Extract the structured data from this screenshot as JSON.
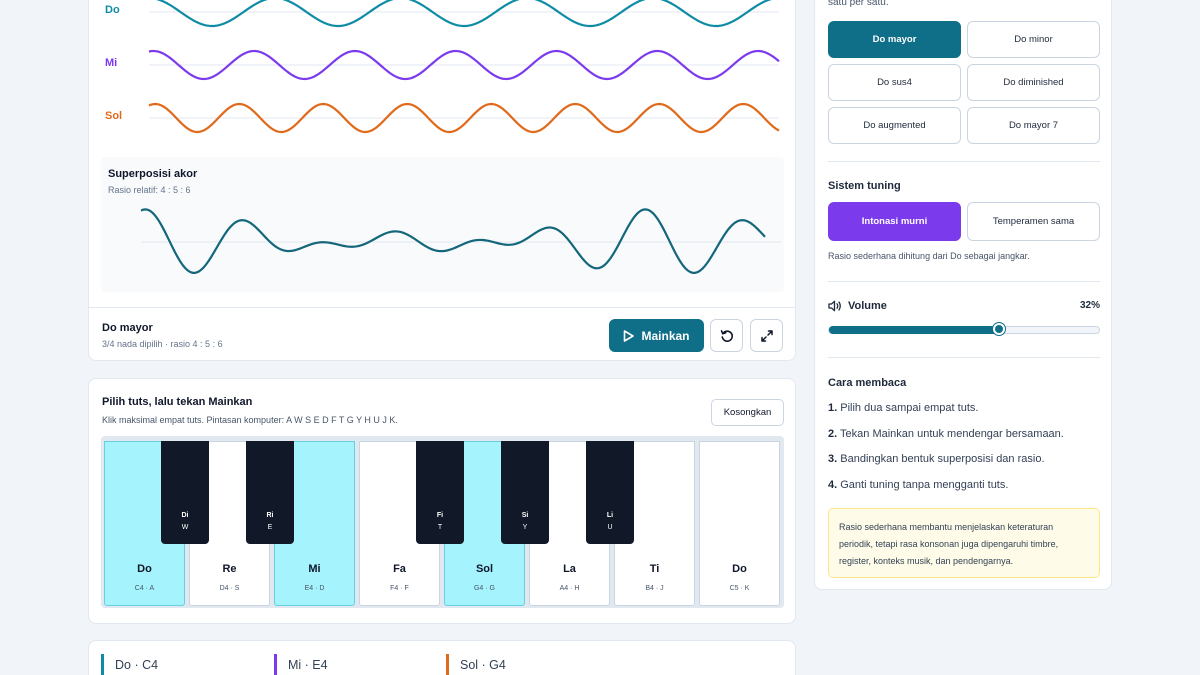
{
  "wave_panel": {
    "waves": [
      {
        "label": "Do",
        "color": "#0e8ca6"
      },
      {
        "label": "Mi",
        "color": "#7c3aed"
      },
      {
        "label": "Sol",
        "color": "#e06a1c"
      }
    ],
    "superposition": {
      "title": "Superposisi akor",
      "ratio": "Rasio relatif: 4 : 5 : 6",
      "color": "#14667b"
    },
    "chord_name": "Do mayor",
    "chord_info": "3/4 nada dipilih · rasio 4 : 5 : 6",
    "play_label": "Mainkan"
  },
  "piano": {
    "title": "Pilih tuts, lalu tekan Mainkan",
    "subtitle": "Klik maksimal empat tuts. Pintasan komputer: A W S E D F T G Y H U J K.",
    "clear_label": "Kosongkan",
    "white_keys": [
      {
        "name": "Do",
        "sub": "C4 · A",
        "selected": true
      },
      {
        "name": "Re",
        "sub": "D4 · S",
        "selected": false
      },
      {
        "name": "Mi",
        "sub": "E4 · D",
        "selected": true
      },
      {
        "name": "Fa",
        "sub": "F4 · F",
        "selected": false
      },
      {
        "name": "Sol",
        "sub": "G4 · G",
        "selected": true
      },
      {
        "name": "La",
        "sub": "A4 · H",
        "selected": false
      },
      {
        "name": "Ti",
        "sub": "B4 · J",
        "selected": false
      },
      {
        "name": "Do",
        "sub": "C5 · K",
        "selected": false
      }
    ],
    "black_keys": [
      {
        "name": "Di",
        "sub": "W"
      },
      {
        "name": "Ri",
        "sub": "E"
      },
      {
        "name": "Fi",
        "sub": "T"
      },
      {
        "name": "Si",
        "sub": "Y"
      },
      {
        "name": "Li",
        "sub": "U"
      }
    ]
  },
  "notes": [
    {
      "label": "Do · C4",
      "color": "#0e8ca6"
    },
    {
      "label": "Mi · E4",
      "color": "#7c3aed"
    },
    {
      "label": "Sol · G4",
      "color": "#e06a1c"
    }
  ],
  "side": {
    "top_text": "satu per satu.",
    "chords": [
      "Do mayor",
      "Do minor",
      "Do sus4",
      "Do diminished",
      "Do augmented",
      "Do mayor 7"
    ],
    "active_chord": "Do mayor",
    "tuning_title": "Sistem tuning",
    "tunings": [
      "Intonasi murni",
      "Temperamen sama"
    ],
    "active_tuning": "Intonasi murni",
    "tuning_note": "Rasio sederhana dihitung dari Do sebagai jangkar.",
    "volume_label": "Volume",
    "volume_value": "32%",
    "volume_level": 0.32,
    "read_title": "Cara membaca",
    "steps": [
      {
        "num": "1.",
        "text": "Pilih dua sampai empat tuts."
      },
      {
        "num": "2.",
        "text": "Tekan Mainkan untuk mendengar bersamaan."
      },
      {
        "num": "3.",
        "text": "Bandingkan bentuk superposisi dan rasio."
      },
      {
        "num": "4.",
        "text": "Ganti tuning tanpa mengganti tuts."
      }
    ],
    "info": "Rasio sederhana membantu menjelaskan keteraturan periodik, tetapi rasa konsonan juga dipengaruhi timbre, register, konteks musik, dan pendengarnya."
  }
}
